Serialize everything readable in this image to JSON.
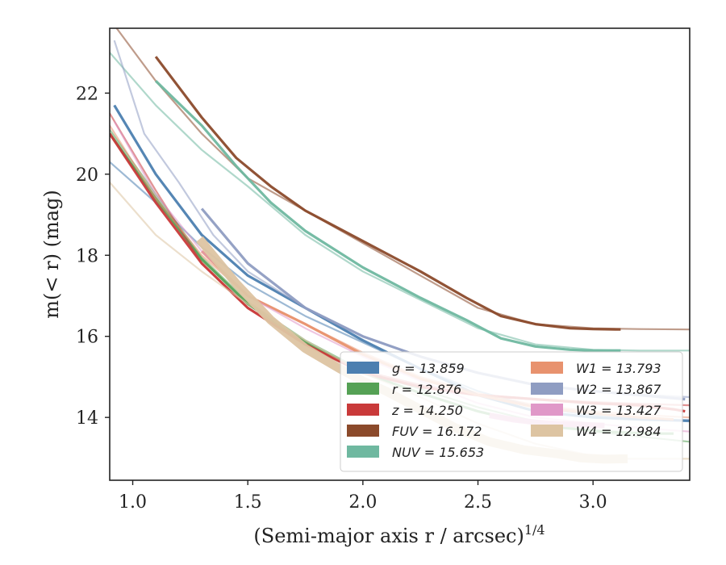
{
  "chart_data": {
    "type": "line",
    "xlabel": "(Semi-major axis r / arcsec)",
    "xlabel_sup": "1/4",
    "ylabel": "m(< r) (mag)",
    "xlim": [
      0.9,
      3.42
    ],
    "ylim": [
      23.6,
      12.45
    ],
    "xticks": [
      1.0,
      1.5,
      2.0,
      2.5,
      3.0
    ],
    "xtick_labels": [
      "1.0",
      "1.5",
      "2.0",
      "2.5",
      "3.0"
    ],
    "yticks": [
      14,
      16,
      18,
      20,
      22
    ],
    "ytick_labels": [
      "14",
      "16",
      "18",
      "20",
      "22"
    ],
    "legend_placement": "lower-right",
    "legend_columns": 2,
    "series": [
      {
        "name": "g = 13.859",
        "color": "#4c7fb0",
        "thin": {
          "x": [
            0.9,
            1.1,
            1.3,
            1.5,
            1.75,
            2.0,
            2.25,
            2.5,
            2.75,
            3.0,
            3.25,
            3.42
          ],
          "y": [
            20.3,
            19.3,
            18.2,
            17.3,
            16.5,
            15.85,
            15.2,
            14.65,
            14.25,
            14.05,
            13.95,
            13.9
          ]
        },
        "thick": {
          "x": [
            0.92,
            1.1,
            1.3,
            1.5,
            1.75,
            2.0,
            2.25,
            2.5,
            2.75,
            3.0,
            3.2,
            3.42
          ],
          "y": [
            21.7,
            20.0,
            18.5,
            17.5,
            16.7,
            15.9,
            15.2,
            14.55,
            14.15,
            14.0,
            13.95,
            13.92
          ]
        }
      },
      {
        "name": "r = 12.876",
        "color": "#55a155",
        "thin": {
          "x": [
            0.9,
            1.1,
            1.3,
            1.5,
            1.75,
            2.0,
            2.25,
            2.5,
            2.75,
            3.0,
            3.25,
            3.42
          ],
          "y": [
            21.1,
            19.5,
            17.95,
            16.85,
            15.9,
            15.15,
            14.7,
            14.25,
            13.9,
            13.65,
            13.5,
            13.4
          ]
        },
        "thick": {
          "x": [
            0.9,
            1.1,
            1.3,
            1.5,
            1.75,
            2.0,
            2.25,
            2.5,
            2.65,
            2.85,
            3.05,
            3.25,
            3.35
          ],
          "y": [
            21.0,
            19.4,
            17.9,
            16.8,
            15.85,
            15.1,
            14.6,
            14.15,
            13.95,
            13.75,
            13.65,
            13.6,
            13.6
          ]
        }
      },
      {
        "name": "z = 14.250",
        "color": "#c93a3a",
        "thin": {
          "x": [
            0.9,
            1.1,
            1.3,
            1.5,
            1.75,
            2.0,
            2.25,
            2.5,
            2.75,
            3.0,
            3.25,
            3.42
          ],
          "y": [
            21.5,
            19.6,
            17.8,
            16.7,
            15.8,
            15.15,
            14.8,
            14.55,
            14.45,
            14.38,
            14.33,
            14.3
          ]
        },
        "thick": {
          "x": [
            0.9,
            1.1,
            1.3,
            1.5,
            1.75,
            2.0,
            2.25,
            2.5,
            2.75,
            3.0,
            3.2,
            3.35,
            3.4
          ],
          "y": [
            21.0,
            19.3,
            17.8,
            16.7,
            15.8,
            15.1,
            14.75,
            14.55,
            14.45,
            14.35,
            14.3,
            14.2,
            14.15
          ]
        }
      },
      {
        "name": "FUV = 16.172",
        "color": "#8b4a2b",
        "thin": {
          "x": [
            0.93,
            1.1,
            1.3,
            1.5,
            1.75,
            2.0,
            2.25,
            2.5,
            2.75,
            3.0,
            3.2,
            3.42
          ],
          "y": [
            23.6,
            22.3,
            21.0,
            19.9,
            19.1,
            18.3,
            17.5,
            16.7,
            16.3,
            16.2,
            16.18,
            16.17
          ]
        },
        "thick": {
          "x": [
            1.1,
            1.3,
            1.45,
            1.6,
            1.75,
            2.0,
            2.25,
            2.45,
            2.6,
            2.75,
            2.9,
            3.0,
            3.12
          ],
          "y": [
            22.9,
            21.4,
            20.4,
            19.7,
            19.1,
            18.35,
            17.6,
            16.95,
            16.5,
            16.3,
            16.2,
            16.18,
            16.17
          ]
        }
      },
      {
        "name": "NUV = 15.653",
        "color": "#6fb8a0",
        "thin": {
          "x": [
            0.9,
            1.1,
            1.3,
            1.5,
            1.75,
            2.0,
            2.25,
            2.5,
            2.75,
            3.0,
            3.2,
            3.42
          ],
          "y": [
            23.0,
            21.7,
            20.6,
            19.7,
            18.5,
            17.6,
            16.9,
            16.2,
            15.8,
            15.67,
            15.65,
            15.65
          ]
        },
        "thick": {
          "x": [
            1.1,
            1.3,
            1.45,
            1.6,
            1.75,
            2.0,
            2.25,
            2.45,
            2.6,
            2.75,
            2.9,
            3.0,
            3.12
          ],
          "y": [
            22.3,
            21.2,
            20.2,
            19.3,
            18.6,
            17.7,
            16.95,
            16.4,
            15.95,
            15.75,
            15.67,
            15.65,
            15.65
          ]
        }
      },
      {
        "name": "W1 = 13.793",
        "color": "#e8926e",
        "thin": {
          "x": [
            0.9,
            1.1,
            1.3,
            1.5,
            1.75,
            2.0,
            2.25,
            2.5,
            2.75,
            3.0,
            3.25,
            3.42
          ],
          "y": [
            21.2,
            19.4,
            18.0,
            17.0,
            16.3,
            15.6,
            15.0,
            14.6,
            14.3,
            14.15,
            14.05,
            14.0
          ]
        },
        "thick": {
          "x": [
            1.3,
            1.5,
            1.75,
            2.0,
            2.25,
            2.5,
            2.75,
            3.0,
            3.2,
            3.35
          ],
          "y": [
            18.1,
            17.0,
            16.3,
            15.55,
            14.95,
            14.55,
            14.25,
            14.1,
            14.0,
            13.95
          ]
        }
      },
      {
        "name": "W2 = 13.867",
        "color": "#8f9dc2",
        "thin": {
          "x": [
            0.92,
            1.05,
            1.2,
            1.35,
            1.5,
            1.75,
            2.0,
            2.25,
            2.5,
            2.75,
            3.0,
            3.25,
            3.42
          ],
          "y": [
            23.3,
            21.0,
            19.8,
            18.5,
            17.6,
            16.7,
            16.0,
            15.5,
            15.1,
            14.8,
            14.65,
            14.55,
            14.5
          ]
        },
        "thick": {
          "x": [
            1.3,
            1.5,
            1.75,
            2.0,
            2.25,
            2.5,
            2.75,
            3.0,
            3.2,
            3.4
          ],
          "y": [
            19.15,
            17.8,
            16.7,
            16.0,
            15.5,
            15.1,
            14.8,
            14.65,
            14.55,
            14.45
          ]
        }
      },
      {
        "name": "W3 = 13.427",
        "color": "#e098c8",
        "thin": {
          "x": [
            0.92,
            1.1,
            1.3,
            1.5,
            1.75,
            2.0,
            2.25,
            2.5,
            2.75,
            3.0,
            3.25,
            3.42
          ],
          "y": [
            21.3,
            19.5,
            18.1,
            17.0,
            16.2,
            15.5,
            14.9,
            14.35,
            14.0,
            13.85,
            13.72,
            13.65
          ]
        },
        "thick": {
          "x": [
            2.55,
            2.65,
            2.75,
            2.85,
            2.95,
            3.05
          ],
          "y": [
            14.05,
            13.95,
            13.88,
            13.84,
            13.82,
            13.8
          ]
        }
      },
      {
        "name": "W4 = 12.984",
        "color": "#ddc4a2",
        "thin": {
          "x": [
            0.9,
            1.1,
            1.3,
            1.5,
            1.75,
            2.0,
            2.25,
            2.5,
            2.75,
            3.0,
            3.15,
            3.42
          ],
          "y": [
            19.8,
            18.5,
            17.6,
            16.8,
            15.9,
            15.1,
            14.5,
            13.85,
            13.35,
            13.05,
            12.98,
            12.98
          ]
        },
        "thick": {
          "x": [
            1.29,
            1.45,
            1.6,
            1.75,
            1.9,
            2.0,
            2.1,
            2.25,
            2.4,
            2.55,
            2.7,
            2.85,
            2.95,
            3.05,
            3.15
          ],
          "y": [
            18.4,
            17.3,
            16.4,
            15.7,
            15.2,
            14.9,
            14.65,
            14.2,
            13.75,
            13.4,
            13.2,
            13.1,
            13.0,
            12.97,
            12.98
          ]
        }
      }
    ]
  }
}
